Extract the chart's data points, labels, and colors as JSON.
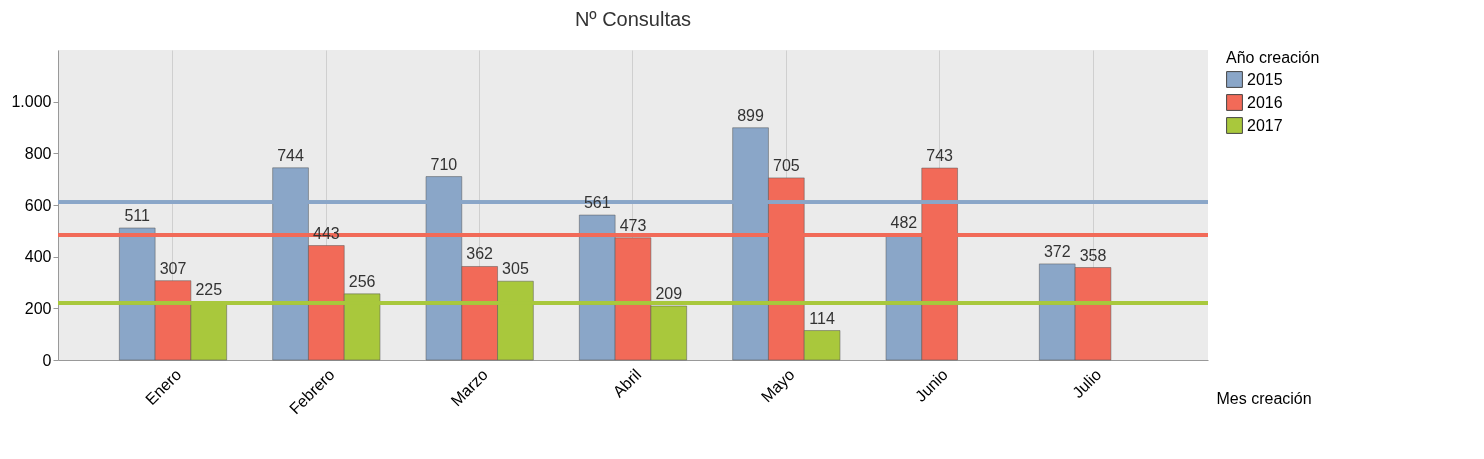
{
  "chart_data": {
    "type": "bar",
    "title": "Nº Consultas",
    "xlabel": "Mes creación",
    "legend_title": "Año creación",
    "categories": [
      "Enero",
      "Febrero",
      "Marzo",
      "Abril",
      "Mayo",
      "Junio",
      "Julio"
    ],
    "series": [
      {
        "name": "2015",
        "color": "#8aa6c8",
        "values": [
          511,
          744,
          710,
          561,
          899,
          482,
          372
        ]
      },
      {
        "name": "2016",
        "color": "#f26a58",
        "values": [
          307,
          443,
          362,
          473,
          705,
          743,
          358
        ]
      },
      {
        "name": "2017",
        "color": "#a9c83c",
        "values": [
          225,
          256,
          305,
          209,
          114,
          null,
          null
        ]
      }
    ],
    "ylim": [
      0,
      1200
    ],
    "yticks": [
      0,
      200,
      400,
      600,
      800,
      {
        "value": 1000,
        "label": "1.000"
      }
    ],
    "ref_lines": [
      {
        "axis": "y",
        "value": 611,
        "color": "#8aa6c8"
      },
      {
        "axis": "y",
        "value": 484,
        "color": "#f26a58"
      },
      {
        "axis": "y",
        "value": 222,
        "color": "#a9c83c"
      }
    ],
    "grid": "x",
    "legend": "top right",
    "data_labels": true
  }
}
